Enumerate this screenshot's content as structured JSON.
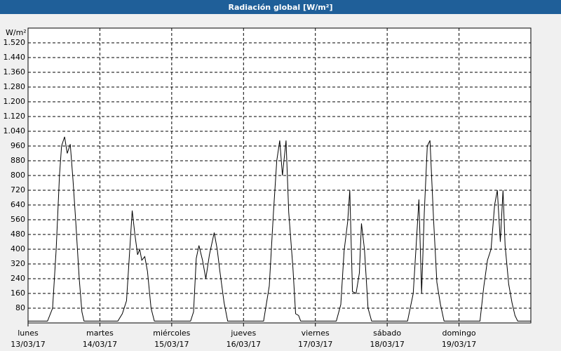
{
  "chart_data": {
    "type": "line",
    "title": "Radiación global [W/m²]",
    "y_unit": "W/m²",
    "xlim": [
      0,
      168
    ],
    "ylim": [
      0,
      1600
    ],
    "xticks": [
      {
        "value": 0,
        "label": "lunes",
        "date": "13/03/17"
      },
      {
        "value": 24,
        "label": "martes",
        "date": "14/03/17"
      },
      {
        "value": 48,
        "label": "miércoles",
        "date": "15/03/17"
      },
      {
        "value": 72,
        "label": "jueves",
        "date": "16/03/17"
      },
      {
        "value": 96,
        "label": "viernes",
        "date": "17/03/17"
      },
      {
        "value": 120,
        "label": "sábado",
        "date": "18/03/17"
      },
      {
        "value": 144,
        "label": "domingo",
        "date": "19/03/17"
      }
    ],
    "yticks": [
      80,
      160,
      240,
      320,
      400,
      480,
      560,
      640,
      720,
      800,
      880,
      960,
      {
        "value": 1040,
        "label": "1.040"
      },
      {
        "value": 1120,
        "label": "1.120"
      },
      {
        "value": 1200,
        "label": "1.200"
      },
      {
        "value": 1280,
        "label": "1.280"
      },
      {
        "value": 1360,
        "label": "1.360"
      },
      {
        "value": 1440,
        "label": "1.440"
      },
      {
        "value": 1520,
        "label": "1.520"
      }
    ],
    "grid": true,
    "series": [
      {
        "color": "#000000",
        "x": [
          0,
          6.5,
          8.2,
          9.4,
          10.5,
          11.2,
          12.2,
          13.1,
          14.1,
          15,
          15.9,
          17.1,
          18,
          18.7,
          30,
          31.5,
          32.9,
          33.8,
          34.8,
          35.7,
          36.6,
          37.3,
          38,
          39,
          39.9,
          41.1,
          42.2,
          54.3,
          55.3,
          56.2,
          57.1,
          58.3,
          59.4,
          60.6,
          62.2,
          63.2,
          64.1,
          65.5,
          66.7,
          78.7,
          80.6,
          82,
          83.1,
          84.1,
          85,
          86.2,
          87.1,
          88.5,
          89.4,
          90.4,
          91.1,
          103,
          104.5,
          105.6,
          106.8,
          107.5,
          108.4,
          109.6,
          110.7,
          111.4,
          112.4,
          113.6,
          114.8,
          126.8,
          128.7,
          129.6,
          130.6,
          131.5,
          132.4,
          133.4,
          134.3,
          135.5,
          136.6,
          137.8,
          139,
          151,
          152.3,
          153.5,
          154.7,
          155.9,
          156.8,
          157.8,
          158.7,
          159.4,
          160.6,
          161.7,
          162.7,
          163.6,
          168
        ],
        "values": [
          10,
          10,
          80,
          400,
          800,
          960,
          1010,
          920,
          970,
          780,
          560,
          240,
          60,
          10,
          10,
          50,
          120,
          350,
          610,
          480,
          370,
          400,
          340,
          360,
          280,
          80,
          10,
          10,
          60,
          350,
          420,
          340,
          240,
          370,
          490,
          400,
          280,
          110,
          10,
          10,
          200,
          600,
          880,
          990,
          800,
          990,
          600,
          300,
          50,
          40,
          10,
          10,
          100,
          390,
          550,
          720,
          170,
          160,
          270,
          540,
          400,
          80,
          10,
          10,
          160,
          400,
          670,
          160,
          600,
          960,
          990,
          560,
          220,
          100,
          10,
          10,
          200,
          340,
          400,
          640,
          720,
          440,
          720,
          420,
          210,
          110,
          40,
          10,
          10
        ]
      }
    ]
  }
}
